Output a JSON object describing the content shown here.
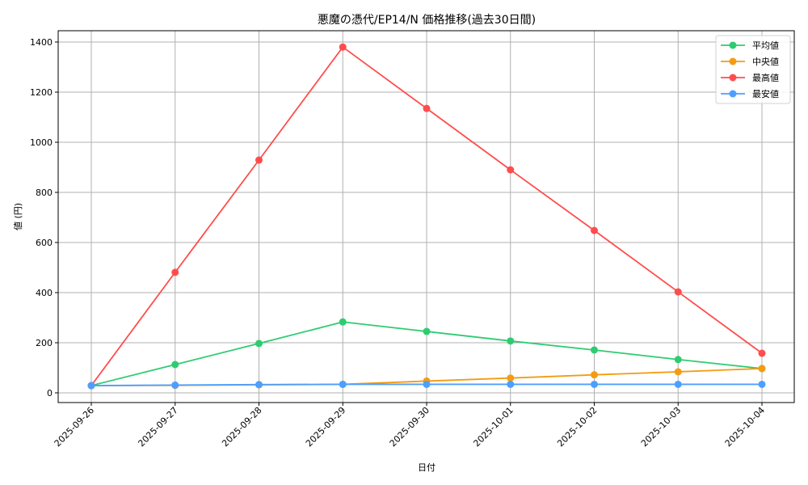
{
  "chart_data": {
    "type": "line",
    "title": "悪魔の憑代/EP14/N 価格推移(過去30日間)",
    "xlabel": "日付",
    "ylabel": "値 (円)",
    "categories": [
      "2025-09-26",
      "2025-09-27",
      "2025-09-28",
      "2025-09-29",
      "2025-09-30",
      "2025-10-01",
      "2025-10-02",
      "2025-10-03",
      "2025-10-04"
    ],
    "ylim": [
      -40,
      1450
    ],
    "yticks": [
      0,
      200,
      400,
      600,
      800,
      1000,
      1200,
      1400
    ],
    "grid": true,
    "legend_position": "upper right",
    "series": [
      {
        "name": "平均値",
        "color": "#2ecc71",
        "values": [
          29,
          113,
          197,
          283,
          245,
          207,
          171,
          133,
          97
        ]
      },
      {
        "name": "中央値",
        "color": "#f39c12",
        "values": [
          29,
          30,
          32,
          34,
          47,
          59,
          72,
          84,
          97
        ]
      },
      {
        "name": "最高値",
        "color": "#ff4d4d",
        "values": [
          29,
          481,
          929,
          1380,
          1135,
          890,
          648,
          403,
          158
        ]
      },
      {
        "name": "最安値",
        "color": "#4d9fff",
        "values": [
          29,
          31,
          33,
          34,
          34,
          34,
          34,
          34,
          34
        ]
      }
    ]
  }
}
